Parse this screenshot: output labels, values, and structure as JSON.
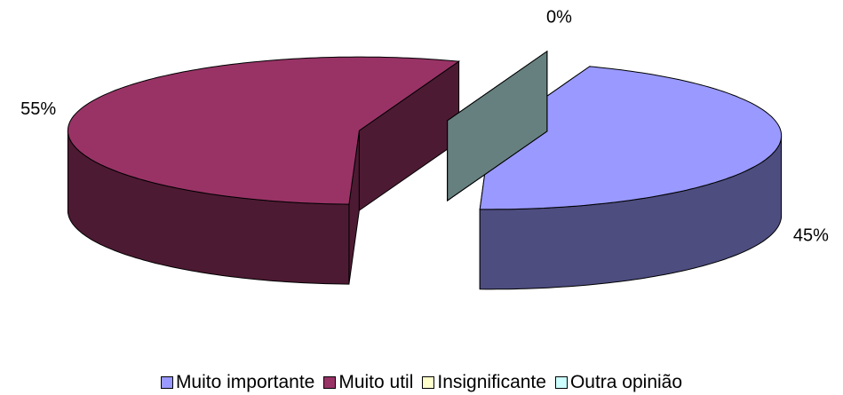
{
  "chart_data": {
    "type": "pie3d",
    "categories": [
      "Muito importante",
      "Muito util",
      "Insignificante",
      "Outra opinião"
    ],
    "values": [
      45,
      55,
      0,
      0
    ],
    "value_labels": [
      "45%",
      "55%",
      null,
      "0%"
    ],
    "colors": [
      "#9999ff",
      "#993366",
      "#ffffcc",
      "#ccffff"
    ],
    "legend": "bottom"
  }
}
